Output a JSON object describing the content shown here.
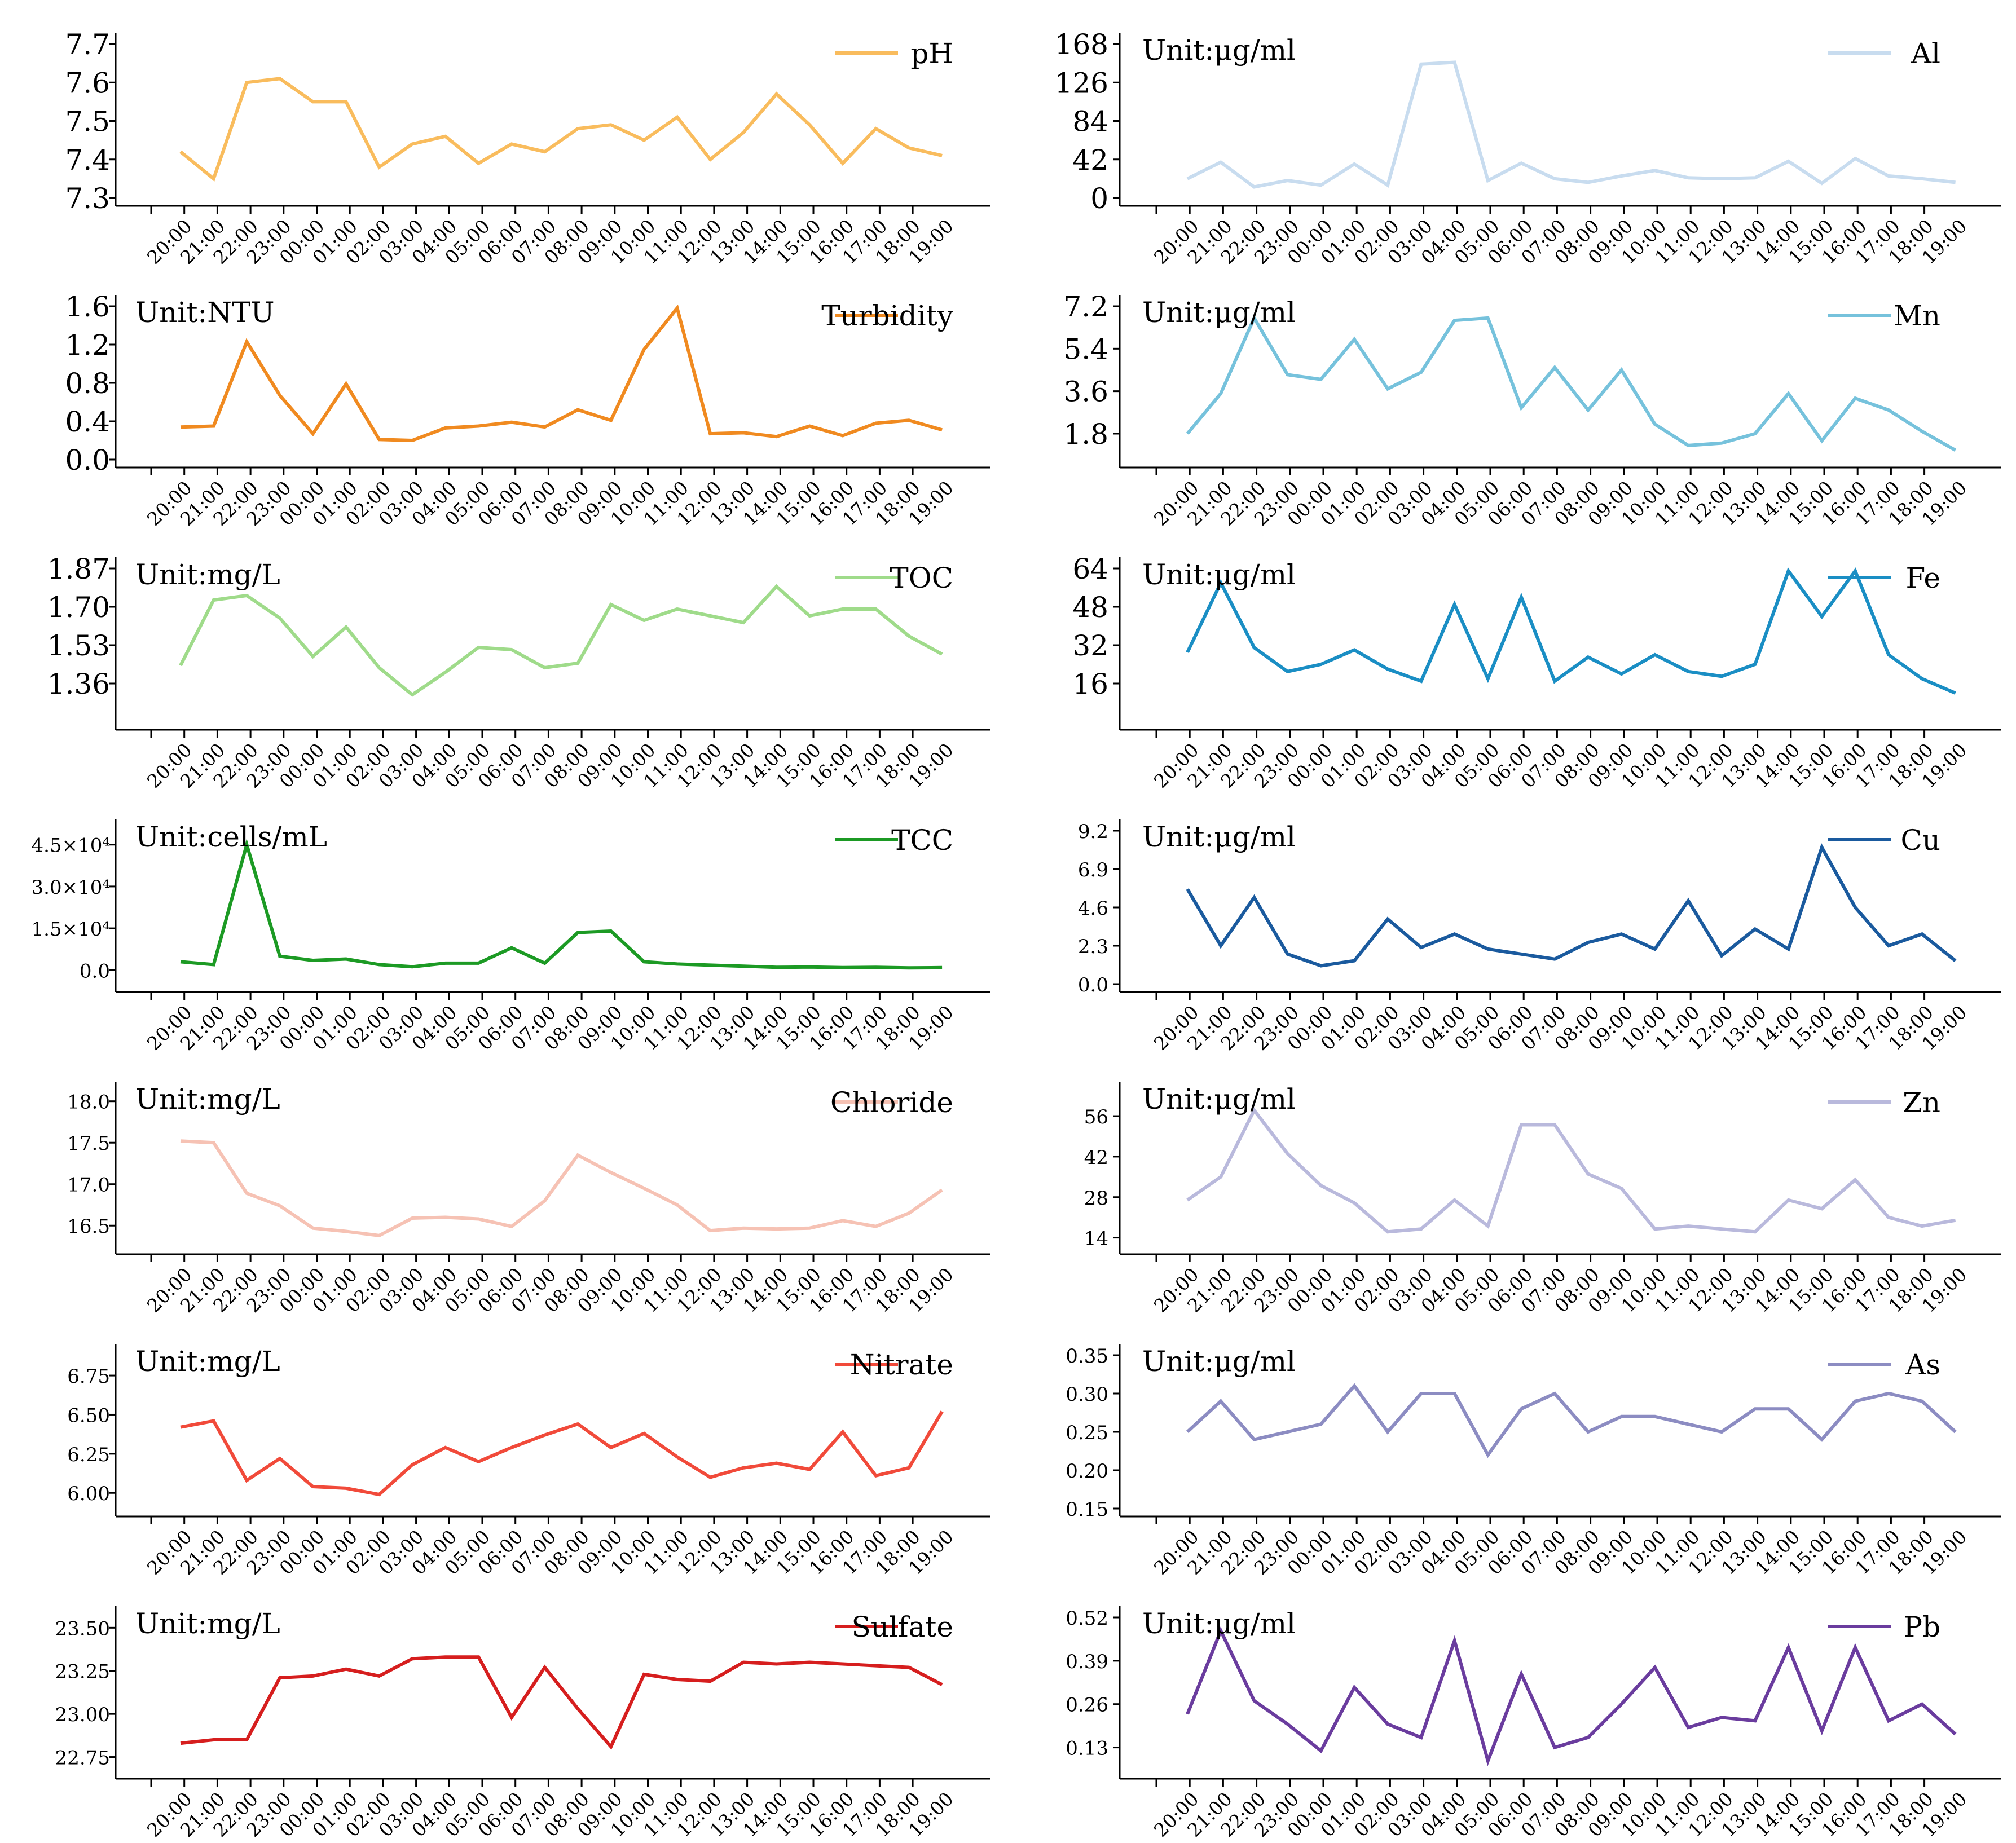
{
  "hours": [
    "20:00",
    "21:00",
    "22:00",
    "23:00",
    "00:00",
    "01:00",
    "02:00",
    "03:00",
    "04:00",
    "05:00",
    "06:00",
    "07:00",
    "08:00",
    "09:00",
    "10:00",
    "11:00",
    "12:00",
    "13:00",
    "14:00",
    "15:00",
    "16:00",
    "17:00",
    "18:00",
    "19:00"
  ],
  "chart_data": [
    {
      "type": "line",
      "name": "pH",
      "color": "#f9bc5d",
      "unit_label": "",
      "yticks": [
        "7.3",
        "7.4",
        "7.5",
        "7.6",
        "7.7"
      ],
      "ylim": [
        7.3,
        7.7
      ],
      "values": [
        7.42,
        7.35,
        7.6,
        7.61,
        7.55,
        7.55,
        7.38,
        7.44,
        7.46,
        7.39,
        7.44,
        7.42,
        7.48,
        7.49,
        7.45,
        7.51,
        7.4,
        7.47,
        7.57,
        7.49,
        7.39,
        7.48,
        7.43,
        7.41
      ]
    },
    {
      "type": "line",
      "name": "Al",
      "color": "#c8dcef",
      "unit_label": "Unit:μg/ml",
      "yticks": [
        "0",
        "42",
        "84",
        "126",
        "168"
      ],
      "ylim": [
        0,
        168
      ],
      "values": [
        21,
        39,
        12,
        19,
        14,
        37,
        14,
        146,
        148,
        19,
        38,
        21,
        17,
        24,
        30,
        22,
        21,
        22,
        40,
        16,
        43,
        24,
        21,
        17
      ]
    },
    {
      "type": "line",
      "name": "Turbidity",
      "color": "#f08a20",
      "unit_label": "Unit:NTU",
      "yticks": [
        "0.0",
        "0.4",
        "0.8",
        "1.2",
        "1.6"
      ],
      "ylim": [
        0,
        1.6
      ],
      "values": [
        0.34,
        0.35,
        1.23,
        0.67,
        0.27,
        0.79,
        0.21,
        0.2,
        0.33,
        0.35,
        0.39,
        0.34,
        0.52,
        0.41,
        1.15,
        1.58,
        0.27,
        0.28,
        0.24,
        0.35,
        0.25,
        0.38,
        0.41,
        0.31
      ]
    },
    {
      "type": "line",
      "name": "Mn",
      "color": "#76c2dc",
      "unit_label": "Unit:μg/ml",
      "yticks": [
        "1.8",
        "3.6",
        "5.4",
        "7.2"
      ],
      "ylim": [
        0.7,
        7.2
      ],
      "values": [
        1.8,
        3.5,
        6.7,
        4.3,
        4.1,
        5.8,
        3.7,
        4.4,
        6.6,
        6.7,
        2.9,
        4.6,
        2.8,
        4.5,
        2.2,
        1.3,
        1.4,
        1.8,
        3.5,
        1.5,
        3.3,
        2.8,
        1.9,
        1.1
      ]
    },
    {
      "type": "line",
      "name": "TOC",
      "color": "#9fdb8a",
      "unit_label": "Unit:mg/L",
      "yticks": [
        "1.36",
        "1.53",
        "1.70",
        "1.87"
      ],
      "ylim": [
        1.19,
        1.87
      ],
      "values": [
        1.44,
        1.73,
        1.75,
        1.65,
        1.48,
        1.61,
        1.43,
        1.31,
        1.41,
        1.52,
        1.51,
        1.43,
        1.45,
        1.71,
        1.64,
        1.69,
        1.66,
        1.63,
        1.79,
        1.66,
        1.69,
        1.69,
        1.57,
        1.49
      ]
    },
    {
      "type": "line",
      "name": "Fe",
      "color": "#1a8ec4",
      "unit_label": "Unit:μg/ml",
      "yticks": [
        "16",
        "32",
        "48",
        "64"
      ],
      "ylim": [
        0,
        64
      ],
      "values": [
        29,
        58,
        31,
        21,
        24,
        30,
        22,
        17,
        49,
        18,
        52,
        17,
        27,
        20,
        28,
        21,
        19,
        24,
        63,
        44,
        63,
        28,
        18,
        12
      ]
    },
    {
      "type": "line",
      "name": "TCC",
      "color": "#1c9a24",
      "unit_label": "Unit:cells/mL",
      "yticks": [
        "0.0",
        "1.5×10⁴",
        "3.0×10⁴",
        "4.5×10⁴"
      ],
      "ylim": [
        -5000,
        50000
      ],
      "values": [
        3000,
        2000,
        45000,
        5000,
        3500,
        4000,
        2000,
        1200,
        2500,
        2500,
        8000,
        2500,
        13500,
        14000,
        3000,
        2200,
        1800,
        1400,
        1000,
        1100,
        900,
        1000,
        800,
        900
      ]
    },
    {
      "type": "line",
      "name": "Cu",
      "color": "#1a5a9e",
      "unit_label": "Unit:μg/ml",
      "yticks": [
        "0.0",
        "2.3",
        "4.6",
        "6.9",
        "9.2"
      ],
      "ylim": [
        0,
        9.2
      ],
      "values": [
        5.7,
        2.3,
        5.2,
        1.8,
        1.1,
        1.4,
        3.9,
        2.2,
        3.0,
        2.1,
        1.8,
        1.5,
        2.5,
        3.0,
        2.1,
        5.0,
        1.7,
        3.3,
        2.1,
        8.2,
        4.6,
        2.3,
        3.0,
        1.4
      ]
    },
    {
      "type": "line",
      "name": "Chloride",
      "color": "#f6c2b4",
      "unit_label": "Unit:mg/L",
      "yticks": [
        "16.5",
        "17.0",
        "17.5",
        "18.0"
      ],
      "ylim": [
        16.25,
        18.1
      ],
      "values": [
        17.52,
        17.5,
        16.89,
        16.74,
        16.47,
        16.43,
        16.38,
        16.59,
        16.6,
        16.58,
        16.49,
        16.8,
        17.35,
        17.14,
        16.95,
        16.75,
        16.44,
        16.47,
        16.46,
        16.47,
        16.56,
        16.49,
        16.65,
        16.93
      ]
    },
    {
      "type": "line",
      "name": "Zn",
      "color": "#b9b9dc",
      "unit_label": "Unit:μg/ml",
      "yticks": [
        "14",
        "28",
        "42",
        "56"
      ],
      "ylim": [
        11,
        64
      ],
      "values": [
        27,
        35,
        58,
        43,
        32,
        26,
        16,
        17,
        27,
        18,
        53,
        53,
        36,
        31,
        17,
        18,
        17,
        16,
        27,
        24,
        34,
        21,
        18,
        20
      ]
    },
    {
      "type": "line",
      "name": "Nitrate",
      "color": "#f14a3a",
      "unit_label": "Unit:mg/L",
      "yticks": [
        "6.00",
        "6.25",
        "6.50",
        "6.75"
      ],
      "ylim": [
        5.9,
        6.88
      ],
      "values": [
        6.42,
        6.46,
        6.08,
        6.22,
        6.04,
        6.03,
        5.99,
        6.18,
        6.29,
        6.2,
        6.29,
        6.37,
        6.44,
        6.29,
        6.38,
        6.23,
        6.1,
        6.16,
        6.19,
        6.15,
        6.39,
        6.11,
        6.16,
        6.52
      ]
    },
    {
      "type": "line",
      "name": "As",
      "color": "#8c8cc2",
      "unit_label": "Unit:μg/ml",
      "yticks": [
        "0.15",
        "0.20",
        "0.25",
        "0.30",
        "0.35"
      ],
      "ylim": [
        0.15,
        0.35
      ],
      "values": [
        0.25,
        0.29,
        0.24,
        0.25,
        0.26,
        0.31,
        0.25,
        0.3,
        0.3,
        0.22,
        0.28,
        0.3,
        0.25,
        0.27,
        0.27,
        0.26,
        0.25,
        0.28,
        0.28,
        0.24,
        0.29,
        0.3,
        0.29,
        0.25
      ]
    },
    {
      "type": "line",
      "name": "Sulfate",
      "color": "#d61e1e",
      "unit_label": "Unit:mg/L",
      "yticks": [
        "22.75",
        "23.00",
        "23.25",
        "23.50"
      ],
      "ylim": [
        22.67,
        23.56
      ],
      "values": [
        22.83,
        22.85,
        22.85,
        23.21,
        23.22,
        23.26,
        23.22,
        23.32,
        23.33,
        23.33,
        22.98,
        23.27,
        23.03,
        22.81,
        23.23,
        23.2,
        23.19,
        23.3,
        23.29,
        23.3,
        23.29,
        23.28,
        23.27,
        23.17
      ]
    },
    {
      "type": "line",
      "name": "Pb",
      "color": "#6a3c9e",
      "unit_label": "Unit:μg/ml",
      "yticks": [
        "0.13",
        "0.26",
        "0.39",
        "0.52"
      ],
      "ylim": [
        0.06,
        0.52
      ],
      "values": [
        0.23,
        0.48,
        0.27,
        0.2,
        0.12,
        0.31,
        0.2,
        0.16,
        0.45,
        0.09,
        0.35,
        0.13,
        0.16,
        0.26,
        0.37,
        0.19,
        0.22,
        0.21,
        0.43,
        0.18,
        0.43,
        0.21,
        0.26,
        0.17
      ]
    }
  ]
}
